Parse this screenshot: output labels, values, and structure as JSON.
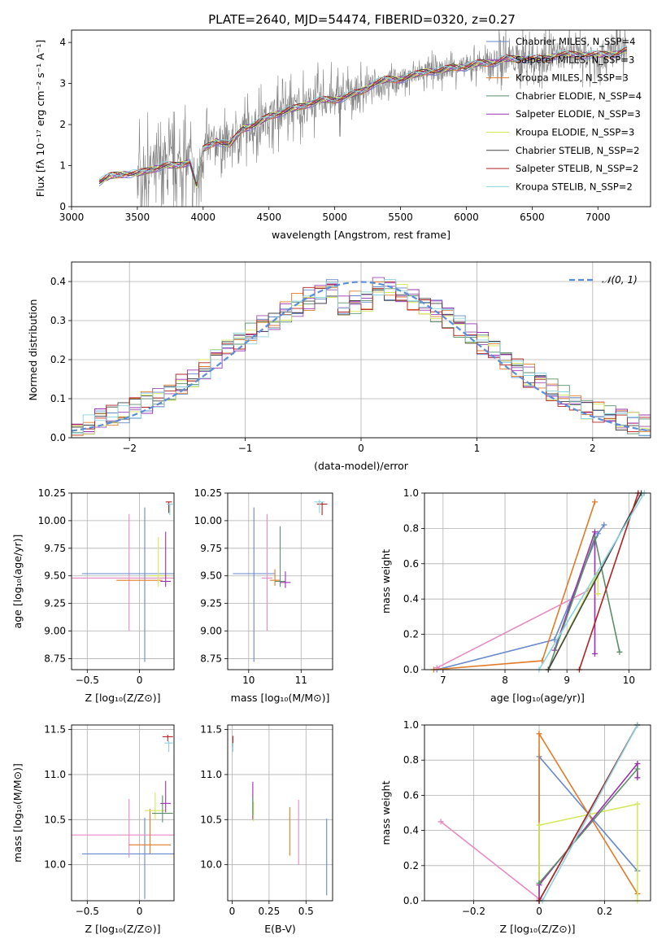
{
  "figure": {
    "title": "PLATE=2640, MJD=54474, FIBERID=0320, z=0.27"
  },
  "chart_data": [
    {
      "id": "spectrum",
      "type": "line",
      "xlabel": "wavelength [Angstrom, rest frame]",
      "ylabel": "Flux [fλ 10⁻¹⁷ erg cm⁻² s⁻¹ A⁻¹]",
      "xlim": [
        3000,
        7400
      ],
      "ylim": [
        0,
        4.3
      ],
      "xticks": [
        3000,
        3500,
        4000,
        4500,
        5000,
        5500,
        6000,
        6500,
        7000
      ],
      "yticks": [
        0,
        1,
        2,
        3,
        4
      ],
      "grid": false,
      "legend": "top-right",
      "data_x": [
        3210,
        3300,
        3400,
        3500,
        3600,
        3700,
        3800,
        3900,
        3950,
        4000,
        4100,
        4200,
        4300,
        4400,
        4500,
        4600,
        4700,
        4800,
        4900,
        5000,
        5100,
        5200,
        5300,
        5400,
        5500,
        5600,
        5700,
        5800,
        5900,
        6000,
        6100,
        6200,
        6300,
        6400,
        6500,
        6600,
        6700,
        6800,
        6900,
        7000,
        7100,
        7200
      ],
      "data_y": [
        0.6,
        0.75,
        0.8,
        0.8,
        0.9,
        1.0,
        1.0,
        1.1,
        0.5,
        1.4,
        1.6,
        1.5,
        1.9,
        2.0,
        2.2,
        2.3,
        2.4,
        2.5,
        2.6,
        2.6,
        2.7,
        2.8,
        3.0,
        3.1,
        3.1,
        3.2,
        3.3,
        3.3,
        3.4,
        3.4,
        3.5,
        3.5,
        3.6,
        3.6,
        3.6,
        3.6,
        3.7,
        3.7,
        3.7,
        3.7,
        3.7,
        3.8
      ],
      "series": [
        {
          "name": "Chabrier MILES, N_SSP=4",
          "color": "#6688cc"
        },
        {
          "name": "Salpeter MILES, N_SSP=3",
          "color": "#9e4fb5"
        },
        {
          "name": "Kroupa MILES, N_SSP=3",
          "color": "#e07b28"
        },
        {
          "name": "Chabrier ELODIE, N_SSP=4",
          "color": "#5a8f6a"
        },
        {
          "name": "Salpeter ELODIE, N_SSP=3",
          "color": "#9b30b0"
        },
        {
          "name": "Kroupa ELODIE, N_SSP=3",
          "color": "#d4e85a"
        },
        {
          "name": "Chabrier STELIB, N_SSP=2",
          "color": "#444444"
        },
        {
          "name": "Salpeter STELIB, N_SSP=2",
          "color": "#b22222"
        },
        {
          "name": "Kroupa STELIB, N_SSP=2",
          "color": "#88d4e0"
        }
      ]
    },
    {
      "id": "residuals",
      "type": "line",
      "xlabel": "(data-model)/error",
      "ylabel": "Normed distribution",
      "xlim": [
        -2.5,
        2.5
      ],
      "ylim": [
        0,
        0.45
      ],
      "xticks": [
        -2,
        -1,
        0,
        1,
        2
      ],
      "yticks": [
        0.0,
        0.1,
        0.2,
        0.3,
        0.4
      ],
      "grid": true,
      "legend": "top-right",
      "reference": {
        "name": "𝒩(0, 1)",
        "color": "#5b8ed6",
        "mean": 0,
        "sigma": 1
      },
      "hist_width": 0.1,
      "hist_start": -2.5
    },
    {
      "id": "age_vs_z",
      "type": "scatter",
      "xlabel": "Z [log₁₀(Z/Z⊙)]",
      "ylabel": "age  [log₁₀(age/yr)]",
      "xlim": [
        -0.65,
        0.33
      ],
      "ylim": [
        8.65,
        10.25
      ],
      "xticks": [
        -0.5,
        0.0
      ],
      "yticks": [
        8.75,
        9.0,
        9.25,
        9.5,
        9.75,
        10.0,
        10.25
      ],
      "grid": true,
      "errorbars": [
        {
          "x": -0.1,
          "y": 9.48,
          "xerr": 0.55,
          "yerr": [
            0.48,
            0.58
          ],
          "color": "#e78ac3"
        },
        {
          "x": 0.05,
          "y": 9.52,
          "xerr": 0.6,
          "yerr": [
            0.8,
            0.6
          ],
          "color": "#6688cc"
        },
        {
          "x": 0.0,
          "y": 9.46,
          "xerr": 0.22,
          "yerr": [
            0.0,
            0.0
          ],
          "color": "#e07b28"
        },
        {
          "x": 0.18,
          "y": 9.5,
          "xerr": 0.1,
          "yerr": [
            0.1,
            0.35
          ],
          "color": "#d4e85a"
        },
        {
          "x": 0.25,
          "y": 9.45,
          "xerr": 0.05,
          "yerr": [
            0.05,
            0.45
          ],
          "color": "#9b30b0"
        },
        {
          "x": 0.28,
          "y": 10.17,
          "xerr": 0.03,
          "yerr": [
            0.1,
            0.0
          ],
          "color": "#b22222"
        },
        {
          "x": 0.29,
          "y": 10.15,
          "xerr": 0.03,
          "yerr": [
            0.1,
            0.0
          ],
          "color": "#88d4e0"
        }
      ]
    },
    {
      "id": "age_vs_mass",
      "type": "scatter",
      "xlabel": "mass [log₁₀(M/M⊙)]",
      "ylabel": "",
      "xlim": [
        9.6,
        11.6
      ],
      "ylim": [
        8.65,
        10.25
      ],
      "xticks": [
        10,
        11
      ],
      "yticks": [
        8.75,
        9.0,
        9.25,
        9.5,
        9.75,
        10.0,
        10.25
      ],
      "grid": true,
      "errorbars": [
        {
          "x": 10.1,
          "y": 9.52,
          "xerr": 0.4,
          "yerr": [
            0.8,
            0.6
          ],
          "color": "#6688cc"
        },
        {
          "x": 10.35,
          "y": 9.48,
          "xerr": 0.1,
          "yerr": [
            0.48,
            0.58
          ],
          "color": "#e78ac3"
        },
        {
          "x": 10.5,
          "y": 9.46,
          "xerr": 0.1,
          "yerr": [
            0.05,
            0.1
          ],
          "color": "#e07b28"
        },
        {
          "x": 10.6,
          "y": 9.45,
          "xerr": 0.1,
          "yerr": [
            0.05,
            0.5
          ],
          "color": "#5a8f6a"
        },
        {
          "x": 10.7,
          "y": 9.44,
          "xerr": 0.1,
          "yerr": [
            0.05,
            0.1
          ],
          "color": "#9b30b0"
        },
        {
          "x": 11.4,
          "y": 10.15,
          "xerr": 0.1,
          "yerr": [
            0.1,
            0.02
          ],
          "color": "#b22222"
        },
        {
          "x": 11.35,
          "y": 10.17,
          "xerr": 0.1,
          "yerr": [
            0.1,
            0.02
          ],
          "color": "#88d4e0"
        }
      ]
    },
    {
      "id": "weight_vs_age",
      "type": "line",
      "xlabel": "age  [log₁₀(age/yr)]",
      "ylabel": "mass weight",
      "xlim": [
        6.7,
        10.35
      ],
      "ylim": [
        0,
        1.0
      ],
      "xticks": [
        7,
        8,
        9,
        10
      ],
      "yticks": [
        0.0,
        0.2,
        0.4,
        0.6,
        0.8,
        1.0
      ],
      "grid": true,
      "series": [
        {
          "color": "#6688cc",
          "x": [
            6.9,
            8.8,
            9.5,
            9.6
          ],
          "y": [
            0.0,
            0.17,
            0.77,
            0.82
          ]
        },
        {
          "color": "#e07b28",
          "x": [
            6.85,
            8.6,
            9.45
          ],
          "y": [
            0.0,
            0.05,
            0.95
          ]
        },
        {
          "color": "#e78ac3",
          "x": [
            6.9,
            9.35
          ],
          "y": [
            0.01,
            0.45
          ]
        },
        {
          "color": "#9b30b0",
          "x": [
            8.8,
            9.45,
            9.45
          ],
          "y": [
            0.11,
            0.78,
            0.09
          ]
        },
        {
          "color": "#d4e85a",
          "x": [
            8.7,
            9.5,
            9.5
          ],
          "y": [
            0.0,
            0.55,
            0.43
          ]
        },
        {
          "color": "#5a8f6a",
          "x": [
            8.7,
            9.45,
            9.85
          ],
          "y": [
            0.0,
            0.75,
            0.1
          ]
        },
        {
          "color": "#444444",
          "x": [
            8.7,
            10.2
          ],
          "y": [
            0.0,
            1.0
          ]
        },
        {
          "color": "#b22222",
          "x": [
            9.2,
            10.15
          ],
          "y": [
            0.0,
            1.0
          ]
        },
        {
          "color": "#88d4e0",
          "x": [
            8.55,
            10.25
          ],
          "y": [
            0.0,
            1.0
          ]
        }
      ]
    },
    {
      "id": "mass_vs_z",
      "type": "scatter",
      "xlabel": "Z [log₁₀(Z/Z⊙)]",
      "ylabel": "mass [log₁₀(M/M⊙)]",
      "xlim": [
        -0.65,
        0.33
      ],
      "ylim": [
        9.6,
        11.55
      ],
      "xticks": [
        -0.5,
        0.0
      ],
      "yticks": [
        10.0,
        10.5,
        11.0,
        11.5
      ],
      "grid": true,
      "errorbars": [
        {
          "x": 0.05,
          "y": 10.12,
          "xerr": 0.6,
          "yerr": [
            0.5,
            0.4
          ],
          "color": "#6688cc"
        },
        {
          "x": -0.1,
          "y": 10.33,
          "xerr": 0.55,
          "yerr": [
            0.25,
            0.4
          ],
          "color": "#e78ac3"
        },
        {
          "x": 0.1,
          "y": 10.22,
          "xerr": 0.2,
          "yerr": [
            0.1,
            0.4
          ],
          "color": "#e07b28"
        },
        {
          "x": 0.15,
          "y": 10.6,
          "xerr": 0.1,
          "yerr": [
            0.1,
            0.2
          ],
          "color": "#d4e85a"
        },
        {
          "x": 0.22,
          "y": 10.57,
          "xerr": 0.1,
          "yerr": [
            0.1,
            0.2
          ],
          "color": "#5a8f6a"
        },
        {
          "x": 0.25,
          "y": 10.68,
          "xerr": 0.05,
          "yerr": [
            0.1,
            0.25
          ],
          "color": "#9b30b0"
        },
        {
          "x": 0.27,
          "y": 11.42,
          "xerr": 0.05,
          "yerr": [
            0.05,
            0.02
          ],
          "color": "#b22222"
        },
        {
          "x": 0.28,
          "y": 11.35,
          "xerr": 0.04,
          "yerr": [
            0.1,
            0.02
          ],
          "color": "#88d4e0"
        }
      ]
    },
    {
      "id": "mass_vs_ebv",
      "type": "scatter",
      "xlabel": "E(B-V)",
      "ylabel": "",
      "xlim": [
        -0.03,
        0.68
      ],
      "ylim": [
        9.6,
        11.55
      ],
      "xticks": [
        0.0,
        0.25,
        0.5
      ],
      "yticks": [
        10.0,
        10.5,
        11.0,
        11.5
      ],
      "grid": true,
      "errorbars": [
        {
          "x": 0.005,
          "y": 11.38,
          "xerr": 0,
          "yerr": [
            0.07,
            0.05
          ],
          "color": "#b22222"
        },
        {
          "x": 0.005,
          "y": 11.3,
          "xerr": 0,
          "yerr": [
            0.05,
            0.05
          ],
          "color": "#88d4e0"
        },
        {
          "x": 0.14,
          "y": 10.7,
          "xerr": 0,
          "yerr": [
            0.2,
            0.22
          ],
          "color": "#9b30b0"
        },
        {
          "x": 0.145,
          "y": 10.6,
          "xerr": 0,
          "yerr": [
            0.12,
            0.1
          ],
          "color": "#d4e85a"
        },
        {
          "x": 0.14,
          "y": 10.65,
          "xerr": 0,
          "yerr": [
            0.1,
            0.1
          ],
          "color": "#5a8f6a"
        },
        {
          "x": 0.39,
          "y": 10.37,
          "xerr": 0,
          "yerr": [
            0.27,
            0.27
          ],
          "color": "#e07b28"
        },
        {
          "x": 0.45,
          "y": 10.4,
          "xerr": 0,
          "yerr": [
            0.4,
            0.32
          ],
          "color": "#e78ac3"
        },
        {
          "x": 0.64,
          "y": 10.08,
          "xerr": 0,
          "yerr": [
            0.42,
            0.43
          ],
          "color": "#6688cc"
        }
      ]
    },
    {
      "id": "weight_vs_z",
      "type": "line",
      "xlabel": "Z [log₁₀(Z/Z⊙)]",
      "ylabel": "mass weight",
      "xlim": [
        -0.35,
        0.34
      ],
      "ylim": [
        0,
        1.0
      ],
      "xticks": [
        -0.2,
        0.0,
        0.2
      ],
      "yticks": [
        0.0,
        0.2,
        0.4,
        0.6,
        0.8,
        1.0
      ],
      "grid": true,
      "series": [
        {
          "color": "#e78ac3",
          "x": [
            -0.3,
            0.0
          ],
          "y": [
            0.45,
            0.01
          ]
        },
        {
          "color": "#6688cc",
          "x": [
            0.0,
            0.0,
            0.3
          ],
          "y": [
            0.0,
            0.82,
            0.17
          ]
        },
        {
          "color": "#e07b28",
          "x": [
            0.0,
            0.0,
            0.3
          ],
          "y": [
            0.0,
            0.95,
            0.04
          ]
        },
        {
          "color": "#d4e85a",
          "x": [
            0.0,
            0.0,
            0.3,
            0.3
          ],
          "y": [
            0.0,
            0.43,
            0.55,
            0.0
          ]
        },
        {
          "color": "#9b30b0",
          "x": [
            0.0,
            0.0,
            0.3,
            0.3
          ],
          "y": [
            0.0,
            0.09,
            0.78,
            0.7
          ]
        },
        {
          "color": "#5a8f6a",
          "x": [
            0.0,
            0.3
          ],
          "y": [
            0.1,
            0.75
          ]
        },
        {
          "color": "#444444",
          "x": [
            0.0,
            0.3
          ],
          "y": [
            0.0,
            1.0
          ]
        },
        {
          "color": "#b22222",
          "x": [
            0.0,
            0.3
          ],
          "y": [
            0.0,
            1.0
          ]
        },
        {
          "color": "#88d4e0",
          "x": [
            0.01,
            0.3
          ],
          "y": [
            0.0,
            1.0
          ]
        }
      ]
    }
  ]
}
